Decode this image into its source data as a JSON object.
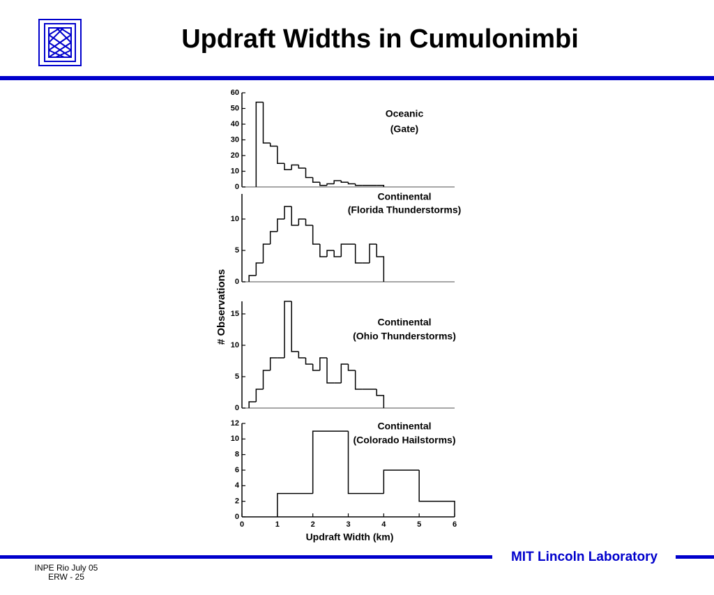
{
  "slide": {
    "title": "Updraft Widths in Cumulonimbi",
    "brand": "MIT Lincoln Laboratory",
    "footer": [
      "INPE Rio  July 05",
      "ERW - 25"
    ]
  },
  "figure": {
    "ylabel": "# Observations"
  },
  "chart_data": [
    {
      "type": "histogram",
      "annotation": [
        "Oceanic",
        "(Gate)"
      ],
      "bins": [
        0.4,
        0.6,
        0.8,
        1.0,
        1.2,
        1.4,
        1.6,
        1.8,
        2.0,
        2.2,
        2.4,
        2.6,
        2.8,
        3.0,
        3.2,
        3.4,
        3.6,
        3.8,
        4.0
      ],
      "values": [
        54,
        28,
        26,
        15,
        11,
        14,
        12,
        6,
        3,
        1,
        2,
        4,
        3,
        2,
        1,
        1,
        1,
        1
      ],
      "xlim": [
        0,
        6
      ],
      "ylim": [
        0,
        60
      ],
      "yticks": [
        0,
        10,
        20,
        30,
        40,
        50,
        60
      ],
      "color": "#000000"
    },
    {
      "type": "histogram",
      "annotation": [
        "Continental",
        "(Florida  Thunderstorms)"
      ],
      "bins": [
        0.2,
        0.4,
        0.6,
        0.8,
        1.0,
        1.2,
        1.4,
        1.6,
        1.8,
        2.0,
        2.2,
        2.4,
        2.6,
        2.8,
        3.0,
        3.2,
        3.4,
        3.6,
        3.8,
        4.0
      ],
      "values": [
        1,
        3,
        6,
        8,
        10,
        12,
        9,
        10,
        9,
        6,
        4,
        5,
        4,
        6,
        6,
        3,
        3,
        6,
        4
      ],
      "xlim": [
        0,
        6
      ],
      "ylim": [
        0,
        14
      ],
      "yticks": [
        0,
        5,
        10
      ],
      "color": "#000000"
    },
    {
      "type": "histogram",
      "annotation": [
        "Continental",
        "(Ohio  Thunderstorms)"
      ],
      "bins": [
        0.2,
        0.4,
        0.6,
        0.8,
        1.0,
        1.2,
        1.4,
        1.6,
        1.8,
        2.0,
        2.2,
        2.4,
        2.6,
        2.8,
        3.0,
        3.2,
        3.4,
        3.6,
        3.8,
        4.0
      ],
      "values": [
        1,
        3,
        6,
        8,
        8,
        17,
        9,
        8,
        7,
        6,
        8,
        4,
        4,
        7,
        6,
        3,
        3,
        3,
        2
      ],
      "xlim": [
        0,
        6
      ],
      "ylim": [
        0,
        17
      ],
      "yticks": [
        0,
        5,
        10,
        15
      ],
      "color": "#000000"
    },
    {
      "type": "histogram",
      "annotation": [
        "Continental",
        "(Colorado  Hailstorms)"
      ],
      "bins": [
        1,
        2,
        3,
        4,
        5,
        6
      ],
      "values": [
        3,
        11,
        3,
        6,
        2
      ],
      "xlim": [
        0,
        6
      ],
      "ylim": [
        0,
        12
      ],
      "yticks": [
        0,
        2,
        4,
        6,
        8,
        10,
        12
      ],
      "xticks": [
        0,
        1,
        2,
        3,
        4,
        5,
        6
      ],
      "xlabel": "Updraft  Width  (km)",
      "color": "#000000"
    }
  ]
}
